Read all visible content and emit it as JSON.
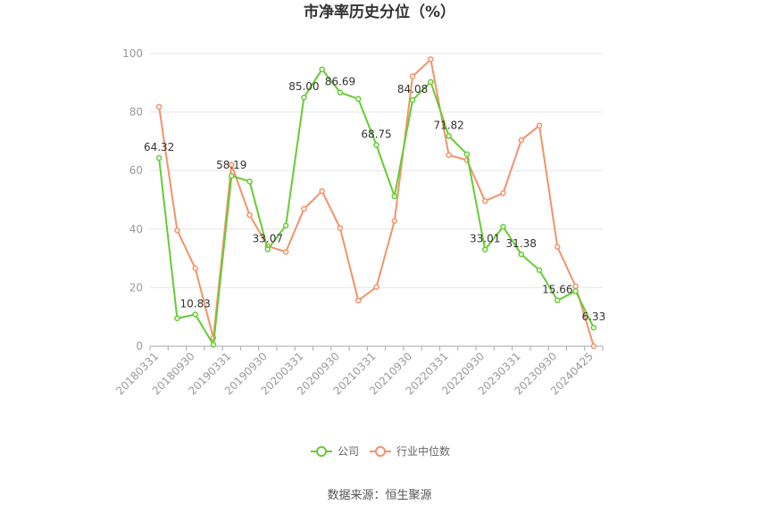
{
  "chart_data": {
    "type": "line",
    "title": "市净率历史分位（%）",
    "source": "数据来源：恒生聚源",
    "ylim": [
      0,
      100
    ],
    "yticks": [
      0,
      20,
      40,
      60,
      80,
      100
    ],
    "grid": true,
    "legend_position": "bottom",
    "x": [
      "20180331",
      "20180630",
      "20180930",
      "20181231",
      "20190331",
      "20190630",
      "20190930",
      "20191231",
      "20200331",
      "20200630",
      "20200930",
      "20201231",
      "20210331",
      "20210630",
      "20210930",
      "20211231",
      "20220331",
      "20220630",
      "20220930",
      "20221231",
      "20230331",
      "20230630",
      "20230930",
      "20231231",
      "20240425"
    ],
    "xtick_labels": [
      "20180331",
      "20180930",
      "20190331",
      "20190930",
      "20200331",
      "20200930",
      "20210331",
      "20210930",
      "20220331",
      "20220930",
      "20230331",
      "20230930",
      "20240425"
    ],
    "series": [
      {
        "name": "公司",
        "color": "#66cc33",
        "values": [
          64.32,
          9.5,
          10.83,
          0.5,
          58.19,
          56.3,
          33.07,
          41.2,
          85.0,
          94.6,
          86.69,
          84.5,
          68.75,
          51.2,
          84.08,
          90.3,
          71.82,
          65.6,
          33.01,
          40.8,
          31.38,
          26.0,
          15.66,
          18.8,
          6.33
        ],
        "labels": [
          "64.32",
          "",
          "10.83",
          "",
          "58.19",
          "",
          "33.07",
          "",
          "85.00",
          "",
          "86.69",
          "",
          "68.75",
          "",
          "84.08",
          "",
          "71.82",
          "",
          "33.01",
          "",
          "31.38",
          "",
          "15.66",
          "",
          "6.33"
        ]
      },
      {
        "name": "行业中位数",
        "color": "#f4926a",
        "values": [
          81.8,
          39.6,
          26.6,
          2.8,
          62.0,
          44.8,
          34.2,
          32.2,
          46.9,
          53.0,
          40.3,
          15.6,
          20.2,
          42.8,
          92.2,
          98.0,
          65.3,
          63.6,
          49.6,
          52.3,
          70.4,
          75.4,
          33.9,
          20.5,
          0
        ]
      }
    ]
  }
}
